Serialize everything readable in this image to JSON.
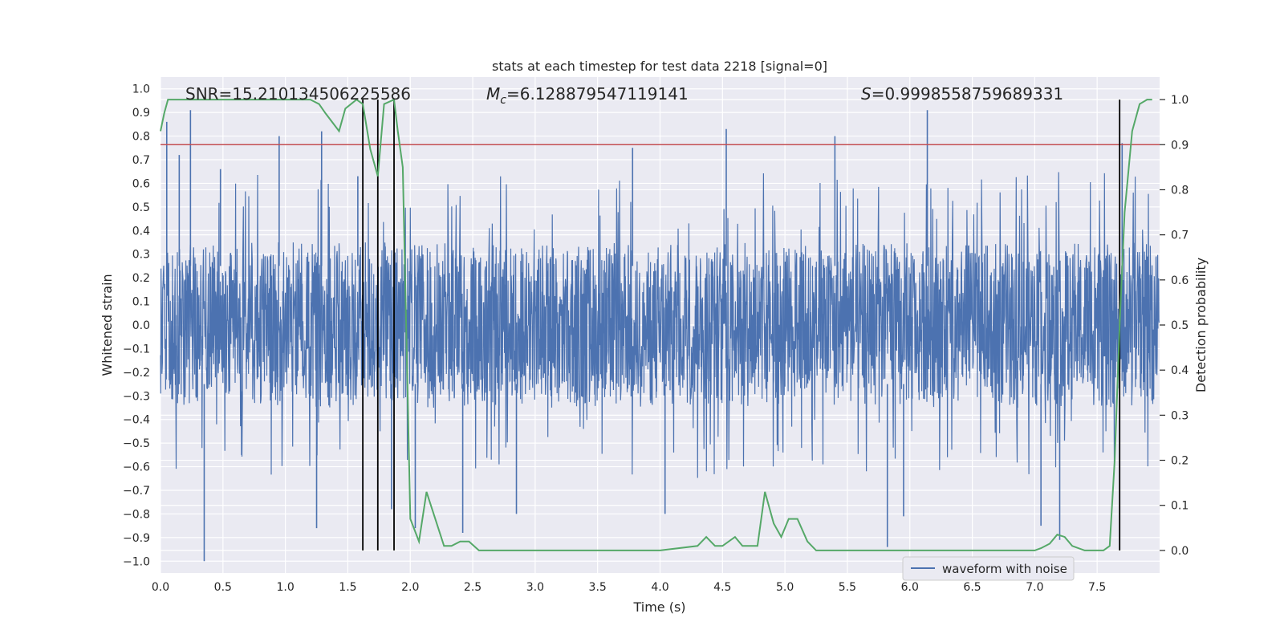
{
  "chart_data": {
    "type": "line",
    "title": "stats at each timestep for test data 2218 [signal=0]",
    "xlabel": "Time (s)",
    "ylabel_left": "Whitened strain",
    "ylabel_right": "Detection probability",
    "xlim": [
      0.0,
      8.0
    ],
    "ylim_left": [
      -1.05,
      1.05
    ],
    "ylim_right": [
      -0.05,
      1.05
    ],
    "x_ticks": [
      "0.0",
      "0.5",
      "1.0",
      "1.5",
      "2.0",
      "2.5",
      "3.0",
      "3.5",
      "4.0",
      "4.5",
      "5.0",
      "5.5",
      "6.0",
      "6.5",
      "7.0",
      "7.5"
    ],
    "y_left_ticks": [
      "1.0",
      "0.9",
      "0.8",
      "0.7",
      "0.6",
      "0.5",
      "0.4",
      "0.3",
      "0.2",
      "0.1",
      "0.0",
      "−0.1",
      "−0.2",
      "−0.3",
      "−0.4",
      "−0.5",
      "−0.6",
      "−0.7",
      "−0.8",
      "−0.9",
      "−1.0"
    ],
    "y_right_ticks": [
      "1.0",
      "0.9",
      "0.8",
      "0.7",
      "0.6",
      "0.5",
      "0.4",
      "0.3",
      "0.2",
      "0.1",
      "0.0"
    ],
    "annotations": {
      "snr": "SNR=15.210134506225586",
      "mc_symbol": "M",
      "mc_sub": "c",
      "mc_value": "=6.128879547119141",
      "s_symbol": "S",
      "s_value": "=0.9998558759689331"
    },
    "threshold": 0.9,
    "vertical_lines_x": [
      1.62,
      1.74,
      1.87,
      7.68
    ],
    "legend": {
      "label": "waveform with noise",
      "position": "lower-right"
    },
    "waveform_series": {
      "name": "waveform with noise",
      "color": "#4c72b0",
      "duration_s": 8.0,
      "n_samples": 2048,
      "core_amplitude": 0.35,
      "peaks": [
        {
          "t": 0.05,
          "v": 0.86
        },
        {
          "t": 0.15,
          "v": 0.72
        },
        {
          "t": 0.24,
          "v": 0.91
        },
        {
          "t": 0.35,
          "v": -1.0
        },
        {
          "t": 0.48,
          "v": 0.66
        },
        {
          "t": 0.95,
          "v": 0.8
        },
        {
          "t": 1.29,
          "v": 0.82
        },
        {
          "t": 1.25,
          "v": -0.86
        },
        {
          "t": 1.58,
          "v": 0.63
        },
        {
          "t": 1.85,
          "v": -0.78
        },
        {
          "t": 2.04,
          "v": -0.86
        },
        {
          "t": 2.42,
          "v": -0.88
        },
        {
          "t": 2.85,
          "v": -0.8
        },
        {
          "t": 3.78,
          "v": 0.75
        },
        {
          "t": 4.04,
          "v": -0.8
        },
        {
          "t": 4.53,
          "v": 0.83
        },
        {
          "t": 5.4,
          "v": 0.8
        },
        {
          "t": 5.82,
          "v": -0.94
        },
        {
          "t": 5.95,
          "v": -0.81
        },
        {
          "t": 6.14,
          "v": 0.91
        },
        {
          "t": 7.05,
          "v": -0.85
        },
        {
          "t": 7.2,
          "v": -0.91
        },
        {
          "t": 7.7,
          "v": 0.77
        }
      ]
    },
    "probability_series": {
      "name": "detection probability",
      "color": "#55a868",
      "x": [
        0.0,
        0.03,
        0.06,
        0.1,
        0.5,
        1.0,
        1.2,
        1.27,
        1.32,
        1.43,
        1.48,
        1.57,
        1.62,
        1.68,
        1.74,
        1.79,
        1.87,
        1.9,
        1.94,
        2.0,
        2.07,
        2.13,
        2.2,
        2.27,
        2.33,
        2.4,
        2.47,
        2.55,
        3.0,
        3.5,
        4.0,
        4.3,
        4.37,
        4.44,
        4.5,
        4.6,
        4.66,
        4.72,
        4.78,
        4.84,
        4.91,
        4.97,
        5.03,
        5.1,
        5.18,
        5.25,
        5.5,
        6.0,
        6.5,
        7.0,
        7.05,
        7.12,
        7.18,
        7.24,
        7.3,
        7.4,
        7.5,
        7.55,
        7.6,
        7.64,
        7.68,
        7.72,
        7.78,
        7.84,
        7.9,
        7.94
      ],
      "y": [
        0.93,
        0.97,
        1.0,
        1.0,
        1.0,
        1.0,
        1.0,
        0.99,
        0.97,
        0.93,
        0.98,
        1.0,
        0.99,
        0.89,
        0.83,
        0.99,
        1.0,
        0.93,
        0.85,
        0.07,
        0.02,
        0.13,
        0.07,
        0.01,
        0.01,
        0.02,
        0.02,
        0.0,
        0.0,
        0.0,
        0.0,
        0.01,
        0.03,
        0.01,
        0.01,
        0.03,
        0.01,
        0.01,
        0.01,
        0.13,
        0.06,
        0.03,
        0.07,
        0.07,
        0.02,
        0.0,
        0.0,
        0.0,
        0.0,
        0.0,
        0.005,
        0.015,
        0.035,
        0.03,
        0.01,
        0.0,
        0.0,
        0.0,
        0.01,
        0.2,
        0.5,
        0.75,
        0.93,
        0.99,
        1.0,
        1.0
      ]
    }
  }
}
